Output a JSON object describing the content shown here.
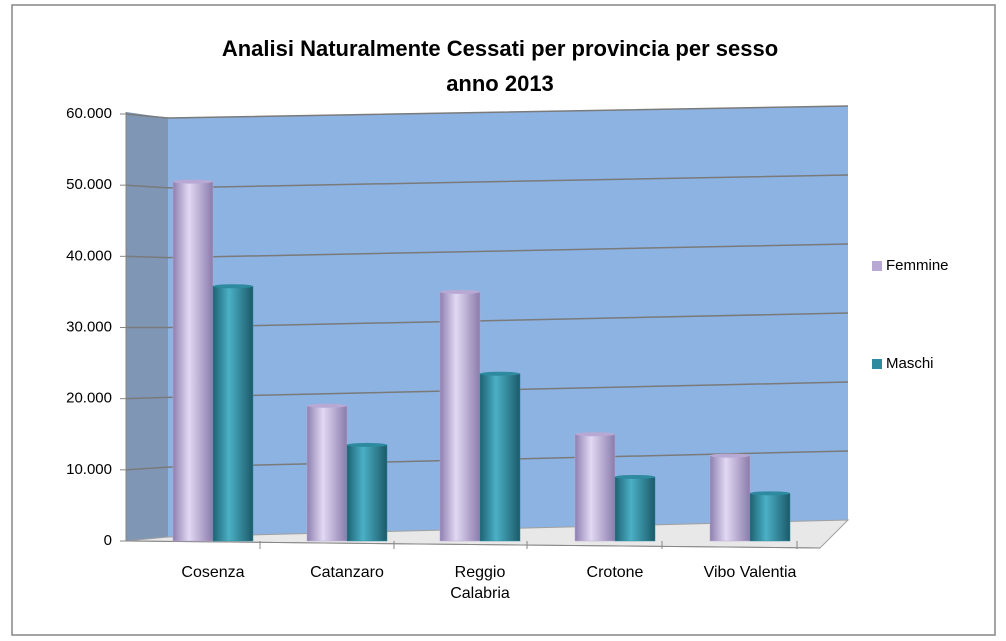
{
  "chart_data": {
    "type": "bar",
    "title": [
      "Analisi  Naturalmente  Cessati   per  provincia  per sesso",
      "anno 2013"
    ],
    "categories": [
      "Cosenza",
      "Catanzaro",
      "Reggio\nCalabria",
      "Crotone",
      "Vibo Valentia"
    ],
    "series": [
      {
        "name": "Femmine",
        "color": "#b8a9d4",
        "values": [
          50500,
          19000,
          35000,
          15000,
          12000
        ]
      },
      {
        "name": "Maschi",
        "color": "#2e8a9e",
        "values": [
          35800,
          13500,
          23500,
          9000,
          6700
        ]
      }
    ],
    "ylim": [
      0,
      60000
    ],
    "yticks": [
      0,
      {
        "value": 10000,
        "label": "10.000"
      },
      {
        "value": 20000,
        "label": "20.000"
      },
      {
        "value": 30000,
        "label": "30.000"
      },
      {
        "value": 40000,
        "label": "40.000"
      },
      {
        "value": 50000,
        "label": "50.000"
      },
      {
        "value": 60000,
        "label": "60.000"
      }
    ],
    "grid": true,
    "legend": "right"
  }
}
